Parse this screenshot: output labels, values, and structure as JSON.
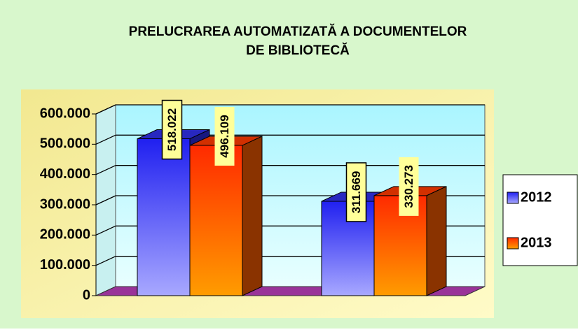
{
  "chart_data": {
    "type": "bar3d",
    "title": [
      "PRELUCRAREA AUTOMATIZATĂ A DOCUMENTELOR",
      "DE BIBLIOTECĂ"
    ],
    "categories": [
      null,
      null
    ],
    "series": [
      {
        "name": "2012",
        "color": "#3333ff",
        "values": [
          518022,
          311669
        ],
        "value_labels": [
          "518.022",
          "311.669"
        ]
      },
      {
        "name": "2013",
        "color": "#ff3300",
        "values": [
          496109,
          330273
        ],
        "value_labels": [
          "496.109",
          "330.273"
        ]
      }
    ],
    "ylim": [
      0,
      600000
    ],
    "yticks": [
      0,
      {
        "value": 100000,
        "label": "100.000"
      },
      {
        "value": 200000,
        "label": "200.000"
      },
      {
        "value": 300000,
        "label": "300.000"
      },
      {
        "value": 400000,
        "label": "400.000"
      },
      {
        "value": 500000,
        "label": "500.000"
      },
      {
        "value": 600000,
        "label": "600.000"
      }
    ],
    "grid": true,
    "legend": "right"
  }
}
